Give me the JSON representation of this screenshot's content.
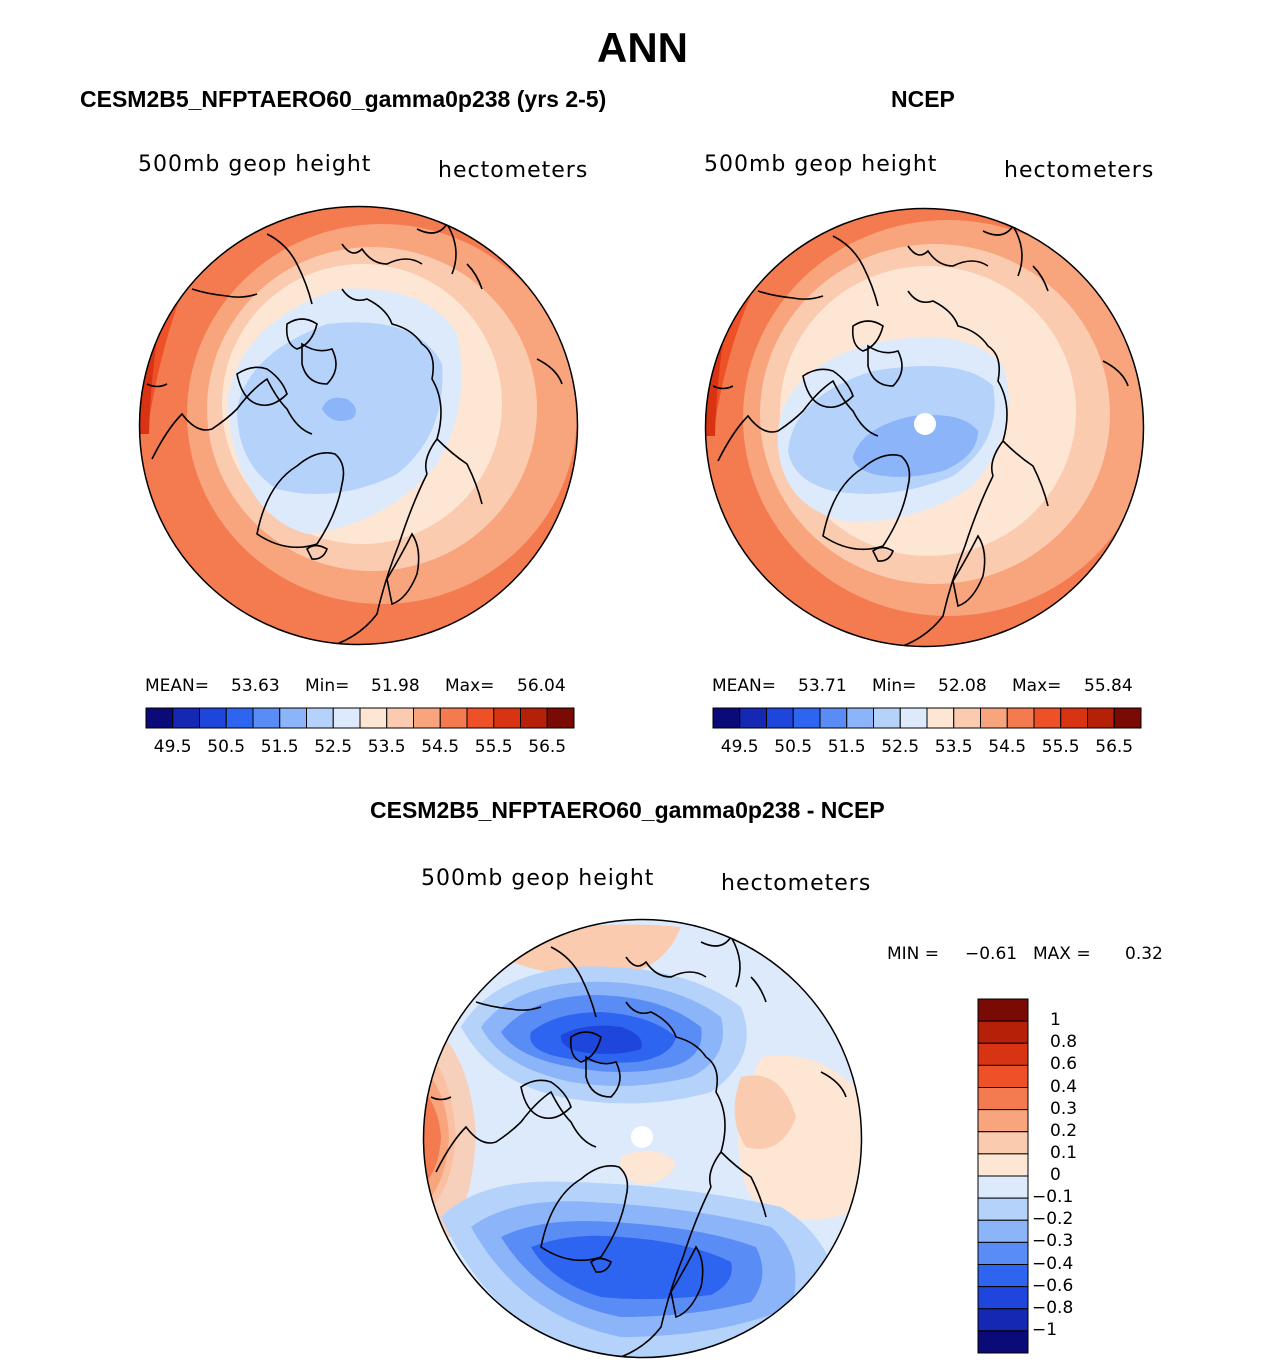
{
  "figure": {
    "title": "ANN",
    "panels": [
      {
        "id": "model",
        "title": "CESM2B5_NFPTAERO60_gamma0p238 (yrs 2-5)",
        "left_label": "500mb geop height",
        "right_label": "hectometers",
        "stats": {
          "mean_label": "MEAN=",
          "mean": "53.63",
          "min_label": "Min=",
          "min": "51.98",
          "max_label": "Max=",
          "max": "56.04"
        },
        "colorbar_labels": [
          "49.5",
          "50.5",
          "51.5",
          "52.5",
          "53.5",
          "54.5",
          "55.5",
          "56.5"
        ]
      },
      {
        "id": "obs",
        "title": "NCEP",
        "left_label": "500mb geop height",
        "right_label": "hectometers",
        "stats": {
          "mean_label": "MEAN=",
          "mean": "53.71",
          "min_label": "Min=",
          "min": "52.08",
          "max_label": "Max=",
          "max": "55.84"
        },
        "colorbar_labels": [
          "49.5",
          "50.5",
          "51.5",
          "52.5",
          "53.5",
          "54.5",
          "55.5",
          "56.5"
        ]
      },
      {
        "id": "diff",
        "title": "CESM2B5_NFPTAERO60_gamma0p238 - NCEP",
        "left_label": "500mb geop height",
        "right_label": "hectometers",
        "stats": {
          "min_label": "MIN =",
          "min": "−0.61",
          "max_label": "MAX =",
          "max": "0.32"
        },
        "colorbar_labels": [
          "1",
          "0.8",
          "0.6",
          "0.4",
          "0.3",
          "0.2",
          "0.1",
          "0",
          "−0.1",
          "−0.2",
          "−0.3",
          "−0.4",
          "−0.6",
          "−0.8",
          "−1"
        ]
      }
    ],
    "abs_colors": [
      "#0a0a78",
      "#1428b4",
      "#1e46dc",
      "#2d64f0",
      "#5a8cf5",
      "#8cb4f8",
      "#b4d2fa",
      "#dceafc",
      "#fde6d4",
      "#fbcbb0",
      "#f8a47c",
      "#f47a4f",
      "#ee5028",
      "#d83414",
      "#b42008",
      "#7a0a04"
    ],
    "diff_colors": [
      "#7a0a04",
      "#b42008",
      "#d83414",
      "#ee5028",
      "#f47a4f",
      "#f8a47c",
      "#fbcbb0",
      "#fde6d4",
      "#dceafc",
      "#b4d2fa",
      "#8cb4f8",
      "#5a8cf5",
      "#2d64f0",
      "#1e46dc",
      "#1428b4",
      "#0a0a78"
    ]
  }
}
